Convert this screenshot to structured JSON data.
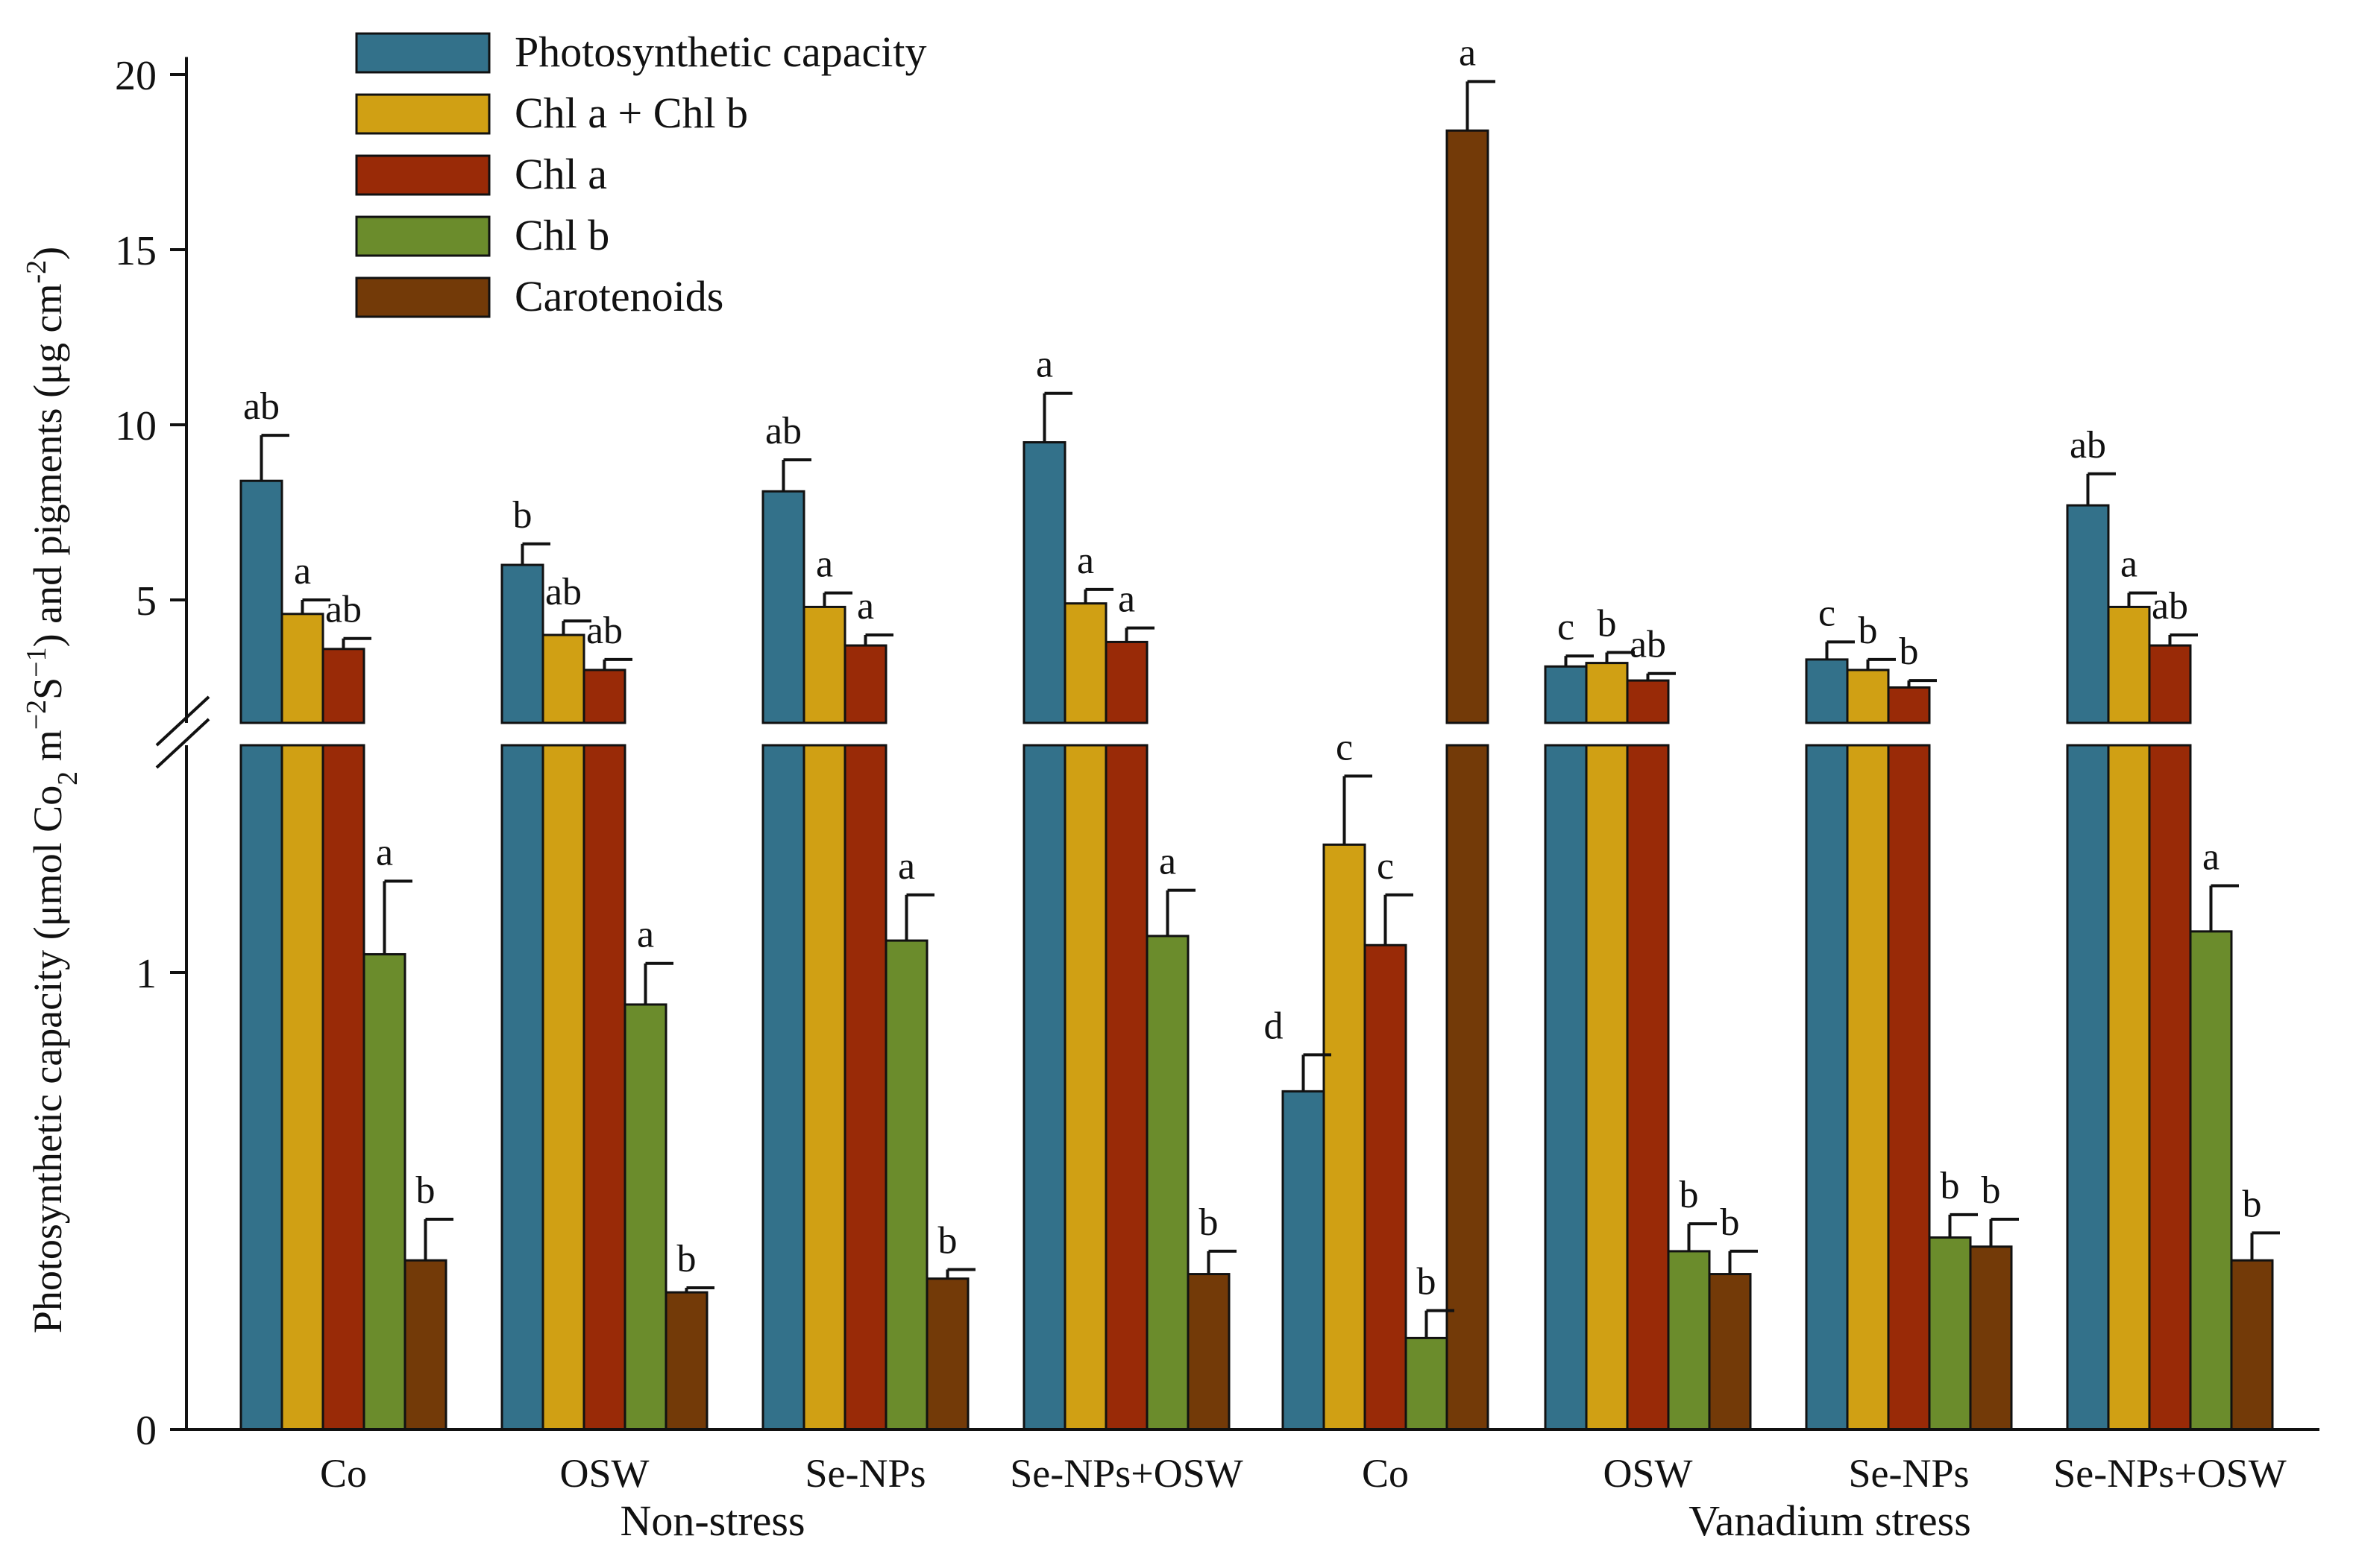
{
  "chart_data": {
    "type": "bar",
    "title": "",
    "xlabel": "",
    "ylabel": "Photosynthetic capacity (μmol Co₂ m⁻²S⁻¹) and pigments (μg cm⁻²)",
    "ylabel_parts": {
      "main": "Photosynthetic capacity (μmol Co",
      "sub2": "2",
      "mid": " m",
      "sup1": "−2",
      "mid2": "S",
      "sup2": "−1",
      "mid3": ") and pigments (μg cm",
      "sup3": "-2",
      "end": ")"
    },
    "axis_break": true,
    "lower_axis": {
      "range": [
        0,
        1.5
      ],
      "ticks": [
        0,
        1
      ],
      "tick_labels": [
        "0",
        "1"
      ]
    },
    "upper_axis": {
      "range": [
        1.6,
        20.5
      ],
      "ticks": [
        5,
        10,
        15,
        20
      ],
      "tick_labels": [
        "5",
        "10",
        "15",
        "20"
      ]
    },
    "categories": [
      "Co",
      "OSW",
      "Se-NPs",
      "Se-NPs+OSW",
      "Co",
      "OSW",
      "Se-NPs",
      "Se-NPs+OSW"
    ],
    "groups": [
      {
        "label": "Non-stress",
        "categories": [
          0,
          1,
          2,
          3
        ]
      },
      {
        "label": "Vanadium stress",
        "categories": [
          4,
          5,
          6,
          7
        ]
      }
    ],
    "legend_position": "top-left",
    "series": [
      {
        "name": "Photosynthetic capacity",
        "color": "#33718a",
        "values": [
          8.4,
          6.0,
          8.1,
          9.5,
          0.74,
          3.1,
          3.3,
          7.7
        ],
        "errors": [
          1.3,
          0.6,
          0.9,
          1.4,
          0.08,
          0.3,
          0.5,
          0.9
        ],
        "sig": [
          "ab",
          "b",
          "ab",
          "a",
          "d",
          "c",
          "c",
          "ab"
        ]
      },
      {
        "name": "Chl a + Chl b",
        "color": "#d0a014",
        "values": [
          4.6,
          4.0,
          4.8,
          4.9,
          1.28,
          3.2,
          3.0,
          4.8
        ],
        "errors": [
          0.4,
          0.4,
          0.4,
          0.4,
          0.15,
          0.3,
          0.3,
          0.4
        ],
        "sig": [
          "a",
          "ab",
          "a",
          "a",
          "c",
          "b",
          "b",
          "a"
        ]
      },
      {
        "name": "Chl a",
        "color": "#992a07",
        "values": [
          3.6,
          3.0,
          3.7,
          3.8,
          1.06,
          2.7,
          2.5,
          3.7
        ],
        "errors": [
          0.3,
          0.3,
          0.3,
          0.4,
          0.11,
          0.2,
          0.2,
          0.3
        ],
        "sig": [
          "ab",
          "ab",
          "a",
          "a",
          "c",
          "ab",
          "b",
          "ab"
        ]
      },
      {
        "name": "Chl b",
        "color": "#6b8c2c",
        "values": [
          1.04,
          0.93,
          1.07,
          1.08,
          0.2,
          0.39,
          0.42,
          1.09
        ],
        "errors": [
          0.16,
          0.09,
          0.1,
          0.1,
          0.06,
          0.06,
          0.05,
          0.1
        ],
        "sig": [
          "a",
          "a",
          "a",
          "a",
          "b",
          "b",
          "b",
          "a"
        ]
      },
      {
        "name": "Carotenoids",
        "color": "#733a08",
        "values": [
          0.37,
          0.3,
          0.33,
          0.34,
          18.4,
          0.34,
          0.4,
          0.37
        ],
        "errors": [
          0.09,
          0.01,
          0.02,
          0.05,
          1.4,
          0.05,
          0.06,
          0.06
        ],
        "sig": [
          "b",
          "b",
          "b",
          "b",
          "a",
          "b",
          "b",
          "b"
        ]
      }
    ]
  }
}
